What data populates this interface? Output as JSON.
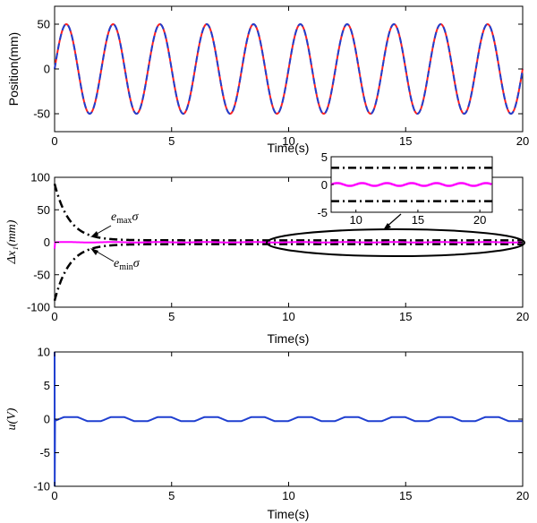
{
  "chart_data": [
    {
      "type": "line",
      "xlabel": "Time(s)",
      "ylabel": "Position(mm)",
      "xlim": [
        0,
        20
      ],
      "ylim": [
        -70,
        70
      ],
      "xticks": [
        "0",
        "5",
        "10",
        "15",
        "20"
      ],
      "yticks": [
        "50",
        "0",
        "-50"
      ],
      "grid": false,
      "series": [
        {
          "color": "#ff2020",
          "style": "solid",
          "function": "50*sin(2*pi*0.5*t)",
          "amplitude": 50,
          "frequency_hz": 0.5
        },
        {
          "color": "#1f3fd0",
          "style": "dashed",
          "function": "50*sin(2*pi*0.5*t)",
          "amplitude": 50,
          "frequency_hz": 0.5
        }
      ]
    },
    {
      "type": "line",
      "xlabel": "Time(s)",
      "ylabel": "Δx₁(mm)",
      "xlim": [
        0,
        20
      ],
      "ylim": [
        -100,
        100
      ],
      "xticks": [
        "0",
        "5",
        "10",
        "15",
        "20"
      ],
      "yticks": [
        "100",
        "50",
        "0",
        "-50",
        "-100"
      ],
      "grid": false,
      "series": [
        {
          "color": "#000000",
          "style": "dashdot",
          "envelope": "upper",
          "start": 90,
          "steady": 3,
          "decay_rate": 1.6
        },
        {
          "color": "#000000",
          "style": "dashdot",
          "envelope": "lower",
          "start": -90,
          "steady": -3,
          "decay_rate": 1.6
        },
        {
          "color": "#ff00ff",
          "style": "solid",
          "values": "approximately 0",
          "initial": -10
        }
      ],
      "annotations": [
        {
          "label_main": "e",
          "label_sub": "max",
          "label_tail": "σ"
        },
        {
          "label_main": "e",
          "label_sub": "min",
          "label_tail": "σ"
        }
      ],
      "inset": {
        "xlim": [
          8,
          21
        ],
        "ylim": [
          -5,
          5
        ],
        "xticks": [
          "10",
          "15",
          "20"
        ],
        "yticks": [
          "5",
          "0",
          "-5"
        ],
        "bounds": [
          3,
          -3
        ]
      }
    },
    {
      "type": "line",
      "xlabel": "Time(s)",
      "ylabel": "u(V)",
      "xlim": [
        0,
        20
      ],
      "ylim": [
        -10,
        10
      ],
      "xticks": [
        "0",
        "5",
        "10",
        "15",
        "20"
      ],
      "yticks": [
        "10",
        "5",
        "0",
        "-5",
        "-10"
      ],
      "grid": false,
      "series": [
        {
          "color": "#1f3fd0",
          "style": "solid",
          "amplitude": 0.3,
          "frequency_hz": 0.5,
          "initial_spike": [
            10,
            -10
          ]
        }
      ]
    }
  ]
}
